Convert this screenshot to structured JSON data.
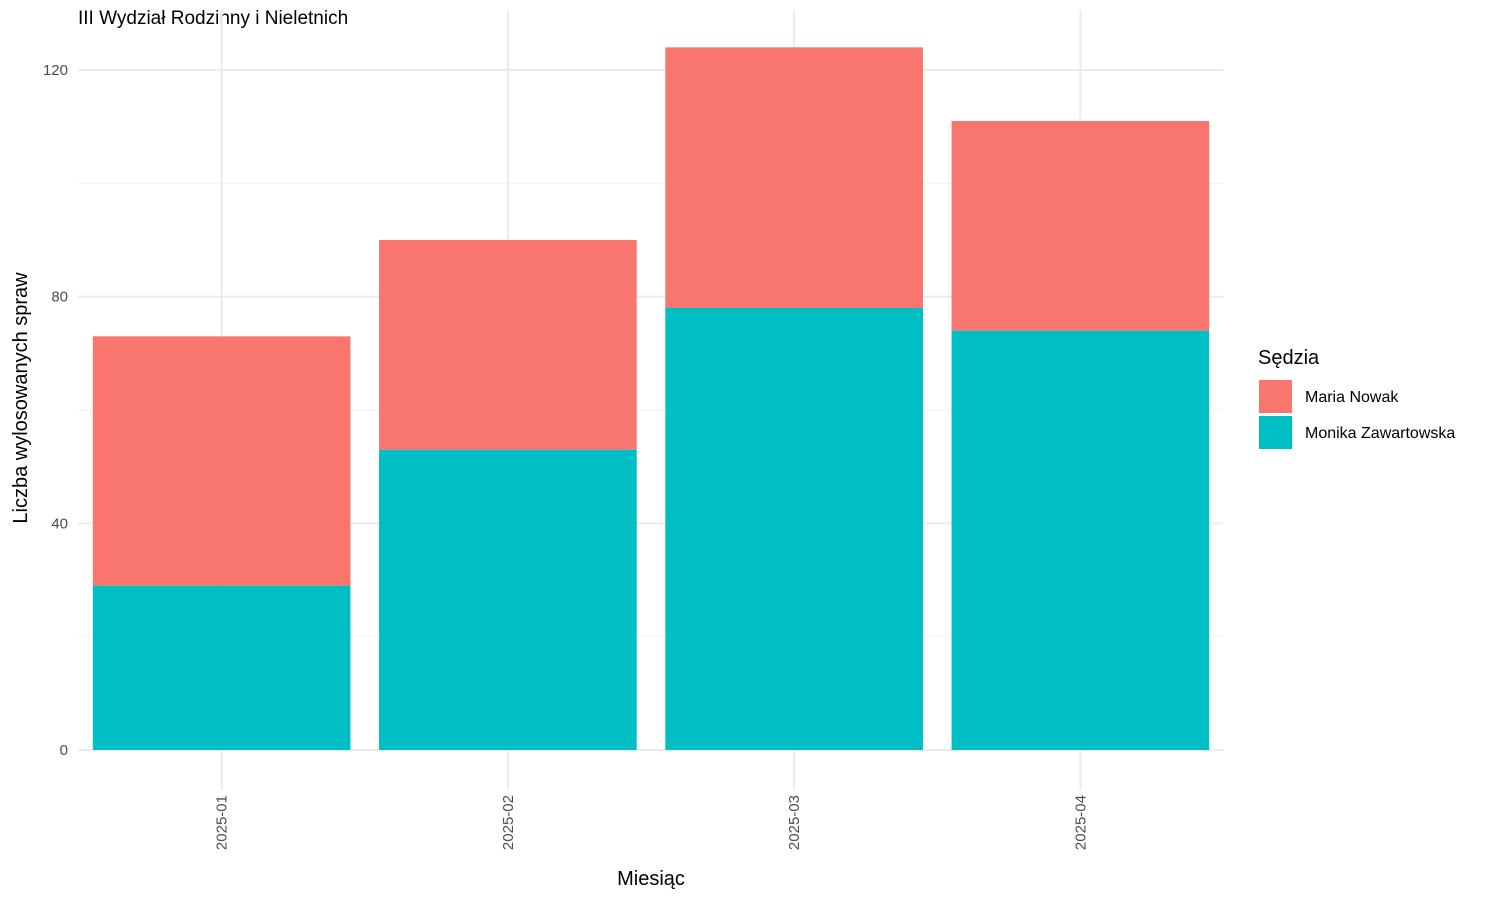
{
  "chart_data": {
    "type": "bar",
    "stacked": true,
    "title": "III Wydział Rodzinny i Nieletnich",
    "xlabel": "Miesiąc",
    "ylabel": "Liczba wylosowanych spraw",
    "categories": [
      "2025-01",
      "2025-02",
      "2025-03",
      "2025-04"
    ],
    "ylim": [
      0,
      129
    ],
    "yticks": [
      0,
      40,
      80,
      120
    ],
    "grid": true,
    "legend": {
      "title": "Sędzia",
      "position": "right"
    },
    "series": [
      {
        "name": "Monika Zawartowska",
        "color": "#00BFC4",
        "values": [
          29,
          53,
          78,
          74
        ]
      },
      {
        "name": "Maria Nowak",
        "color": "#F8766D",
        "values": [
          44,
          37,
          46,
          37
        ]
      }
    ]
  }
}
